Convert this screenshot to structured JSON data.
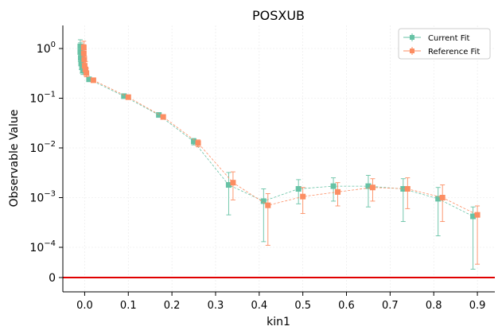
{
  "chart_data": {
    "type": "scatter",
    "title": "POSXUB",
    "xlabel": "kin1",
    "ylabel": "Observable Value",
    "xlim": [
      -0.05,
      0.94
    ],
    "xticks": [
      0.0,
      0.1,
      0.2,
      0.3,
      0.4,
      0.5,
      0.6,
      0.7,
      0.8,
      0.9
    ],
    "xtick_labels": [
      "0.0",
      "0.1",
      "0.2",
      "0.3",
      "0.4",
      "0.5",
      "0.6",
      "0.7",
      "0.8",
      "0.9"
    ],
    "yscale": "symlog",
    "yticks": [
      {
        "value": 1.0,
        "base": "10",
        "exp": "0"
      },
      {
        "value": 0.1,
        "base": "10",
        "exp": "−1"
      },
      {
        "value": 0.01,
        "base": "10",
        "exp": "−2"
      },
      {
        "value": 0.001,
        "base": "10",
        "exp": "−3"
      },
      {
        "value": 0.0001,
        "base": "10",
        "exp": "−4"
      },
      {
        "value": 0,
        "base": "0",
        "exp": ""
      }
    ],
    "hline": {
      "y": 0,
      "color": "#e00000"
    },
    "grid": true,
    "legend_position": "top-right",
    "series": [
      {
        "name": "Current Fit",
        "color": "#66c2a5",
        "points": [
          {
            "x": -0.01,
            "y": 1.1,
            "lo": 0.55,
            "hi": 1.5
          },
          {
            "x": -0.01,
            "y": 0.85,
            "lo": 0.55,
            "hi": 1.3
          },
          {
            "x": -0.009,
            "y": 0.65,
            "lo": 0.45,
            "hi": 1.0
          },
          {
            "x": -0.008,
            "y": 0.5,
            "lo": 0.38,
            "hi": 0.75
          },
          {
            "x": -0.006,
            "y": 0.42,
            "lo": 0.32,
            "hi": 0.6
          },
          {
            "x": -0.004,
            "y": 0.36,
            "lo": 0.3,
            "hi": 0.45
          },
          {
            "x": 0.01,
            "y": 0.24,
            "lo": 0.22,
            "hi": 0.26
          },
          {
            "x": 0.09,
            "y": 0.11,
            "lo": 0.105,
            "hi": 0.115
          },
          {
            "x": 0.17,
            "y": 0.046,
            "lo": 0.043,
            "hi": 0.049
          },
          {
            "x": 0.25,
            "y": 0.0135,
            "lo": 0.0115,
            "hi": 0.0155
          },
          {
            "x": 0.33,
            "y": 0.0018,
            "lo": 0.00045,
            "hi": 0.0032
          },
          {
            "x": 0.41,
            "y": 0.00085,
            "lo": 0.00013,
            "hi": 0.0015
          },
          {
            "x": 0.49,
            "y": 0.0015,
            "lo": 0.00075,
            "hi": 0.0023
          },
          {
            "x": 0.57,
            "y": 0.0017,
            "lo": 0.00085,
            "hi": 0.0025
          },
          {
            "x": 0.65,
            "y": 0.0017,
            "lo": 0.00065,
            "hi": 0.0028
          },
          {
            "x": 0.73,
            "y": 0.0015,
            "lo": 0.00033,
            "hi": 0.0024
          },
          {
            "x": 0.81,
            "y": 0.00095,
            "lo": 0.00017,
            "hi": 0.0016
          },
          {
            "x": 0.89,
            "y": 0.00042,
            "lo": 5e-05,
            "hi": 0.00065
          }
        ]
      },
      {
        "name": "Reference Fit",
        "color": "#fc8d62",
        "points": [
          {
            "x": -0.002,
            "y": 1.05,
            "lo": 0.6,
            "hi": 1.4
          },
          {
            "x": -0.002,
            "y": 0.8,
            "lo": 0.5,
            "hi": 1.2
          },
          {
            "x": -0.001,
            "y": 0.6,
            "lo": 0.42,
            "hi": 0.95
          },
          {
            "x": 0.0,
            "y": 0.45,
            "lo": 0.35,
            "hi": 0.7
          },
          {
            "x": 0.002,
            "y": 0.38,
            "lo": 0.3,
            "hi": 0.55
          },
          {
            "x": 0.004,
            "y": 0.32,
            "lo": 0.27,
            "hi": 0.4
          },
          {
            "x": 0.02,
            "y": 0.23,
            "lo": 0.215,
            "hi": 0.25
          },
          {
            "x": 0.1,
            "y": 0.105,
            "lo": 0.1,
            "hi": 0.11
          },
          {
            "x": 0.18,
            "y": 0.042,
            "lo": 0.039,
            "hi": 0.045
          },
          {
            "x": 0.26,
            "y": 0.0125,
            "lo": 0.0105,
            "hi": 0.0145
          },
          {
            "x": 0.34,
            "y": 0.002,
            "lo": 0.0009,
            "hi": 0.0033
          },
          {
            "x": 0.42,
            "y": 0.0007,
            "lo": 0.00011,
            "hi": 0.0012
          },
          {
            "x": 0.5,
            "y": 0.00105,
            "lo": 0.00048,
            "hi": 0.0016
          },
          {
            "x": 0.58,
            "y": 0.0013,
            "lo": 0.00068,
            "hi": 0.002
          },
          {
            "x": 0.66,
            "y": 0.0016,
            "lo": 0.00085,
            "hi": 0.0024
          },
          {
            "x": 0.74,
            "y": 0.0015,
            "lo": 0.0006,
            "hi": 0.0025
          },
          {
            "x": 0.82,
            "y": 0.001,
            "lo": 0.00033,
            "hi": 0.0018
          },
          {
            "x": 0.9,
            "y": 0.00045,
            "lo": 8e-05,
            "hi": 0.00068
          }
        ]
      }
    ]
  }
}
